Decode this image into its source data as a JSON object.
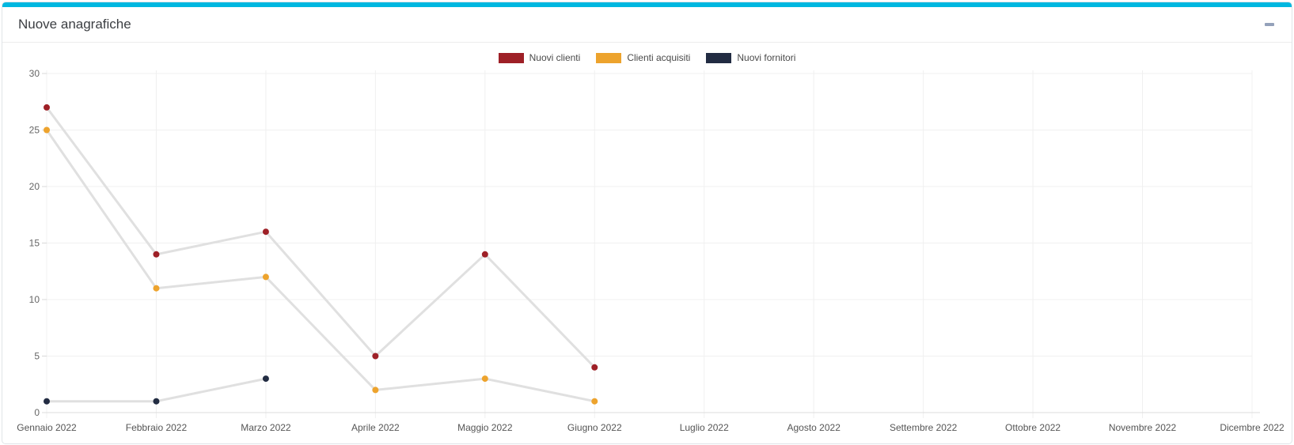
{
  "panel": {
    "title": "Nuove anagrafiche"
  },
  "colors": {
    "accent_bar": "#00b7e0",
    "card_border": "#e0e4e8",
    "collapse_icon": "#94a1ba"
  },
  "chart_data": {
    "type": "line",
    "title": "Nuove anagrafiche",
    "categories": [
      "Gennaio 2022",
      "Febbraio 2022",
      "Marzo 2022",
      "Aprile 2022",
      "Maggio 2022",
      "Giugno 2022",
      "Luglio 2022",
      "Agosto 2022",
      "Settembre 2022",
      "Ottobre 2022",
      "Novembre 2022",
      "Dicembre 2022"
    ],
    "series": [
      {
        "name": "Nuovi clienti",
        "color": "#9e2027",
        "values": [
          27,
          14,
          16,
          5,
          14,
          4,
          null,
          null,
          null,
          null,
          null,
          null
        ]
      },
      {
        "name": "Clienti acquisiti",
        "color": "#eda32d",
        "values": [
          25,
          11,
          12,
          2,
          3,
          1,
          null,
          null,
          null,
          null,
          null,
          null
        ]
      },
      {
        "name": "Nuovi fornitori",
        "color": "#222c42",
        "values": [
          1,
          1,
          3,
          null,
          null,
          null,
          null,
          null,
          null,
          null,
          null,
          null
        ]
      }
    ],
    "ylim": [
      0,
      30
    ],
    "yticks": [
      0,
      5,
      10,
      15,
      20,
      25,
      30
    ],
    "grid": true,
    "legend_position": "top-center",
    "line_color": "#e0e0e0",
    "grid_color": "#f0f0f0",
    "axis_color": "#dcdcdc",
    "tick_color": "#d9d9d9",
    "y_label_color": "#666666",
    "x_label_color": "#555555"
  }
}
